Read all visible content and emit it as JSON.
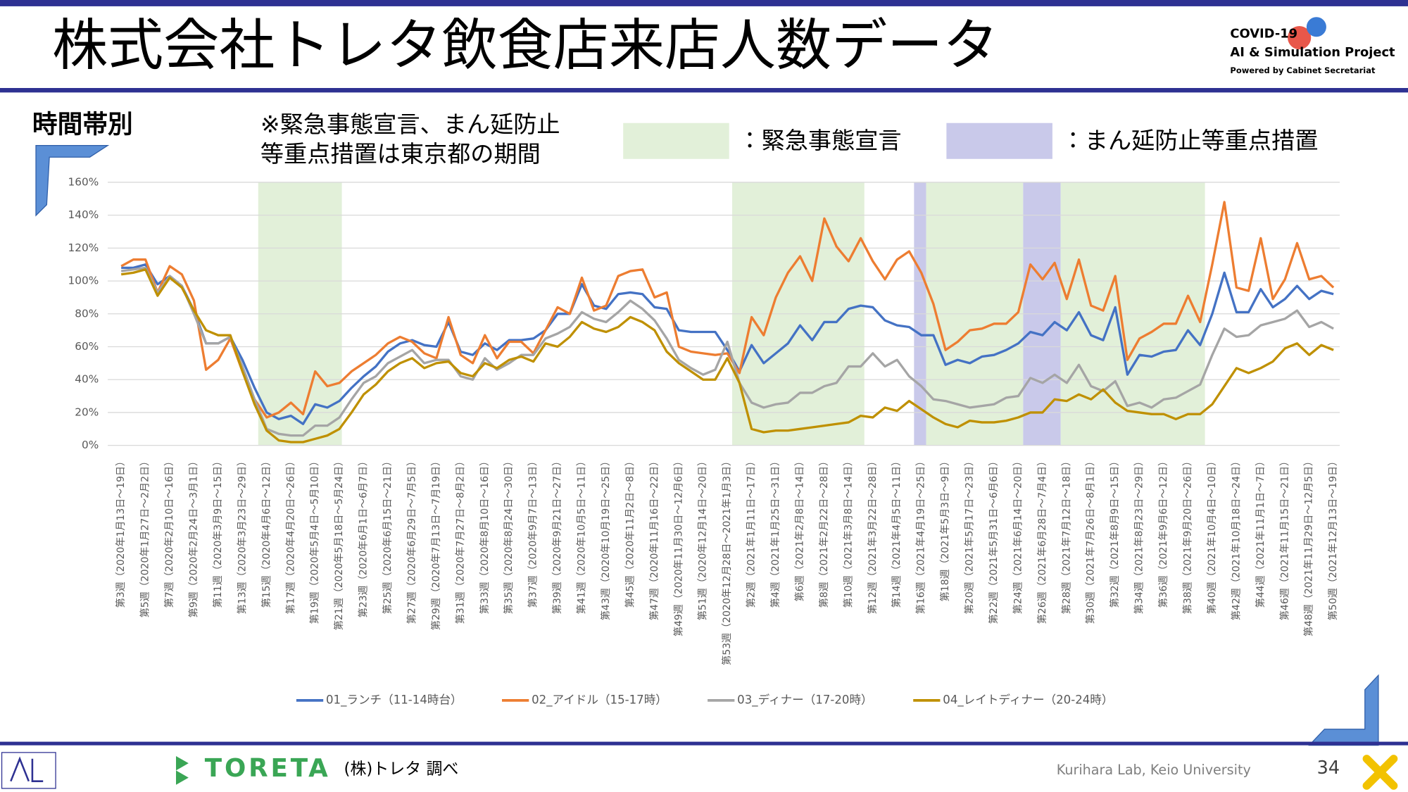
{
  "title": "株式会社トレタ飲食店来店人数データ",
  "logo": {
    "line1": "COVID-19",
    "line2": "AI & Simulation Project",
    "line3": "Powered by Cabinet Secretariat"
  },
  "subtitle": "時間帯別",
  "note": [
    "※緊急事態宣言、まん延防止",
    "等重点措置は東京都の期間"
  ],
  "band_legend": [
    {
      "label": "：緊急事態宣言",
      "color": "#e2f0d9"
    },
    {
      "label": "：まん延防止等重点措置",
      "color": "#c9c9ea"
    }
  ],
  "footer": {
    "brand": "TORETA",
    "source": "(株)トレタ 調べ",
    "lab": "Kurihara Lab, Keio University",
    "page": "34"
  },
  "chart_data": {
    "type": "line",
    "grid": true,
    "ylim": [
      0,
      160
    ],
    "yticks": [
      {
        "value": 0,
        "label": "0%"
      },
      {
        "value": 20,
        "label": "20%"
      },
      {
        "value": 40,
        "label": "40%"
      },
      {
        "value": 60,
        "label": "60%"
      },
      {
        "value": 80,
        "label": "80%"
      },
      {
        "value": 100,
        "label": "100%"
      },
      {
        "value": 120,
        "label": "120%"
      },
      {
        "value": 140,
        "label": "140%"
      },
      {
        "value": 160,
        "label": "160%"
      }
    ],
    "bands": [
      {
        "color": "#e2f0d9",
        "x": [
          11.3,
          18.2
        ]
      },
      {
        "color": "#e2f0d9",
        "x": [
          50.4,
          61.3
        ]
      },
      {
        "color": "#c9c9ea",
        "x": [
          65.4,
          66.4
        ]
      },
      {
        "color": "#e2f0d9",
        "x": [
          66.4,
          74.4
        ]
      },
      {
        "color": "#c9c9ea",
        "x": [
          74.4,
          77.5
        ]
      },
      {
        "color": "#e2f0d9",
        "x": [
          77.5,
          89.4
        ]
      }
    ],
    "categories": [
      "第3週（2020年1月13日～19日）",
      null,
      "第5週（2020年1月27日～2月2日）",
      null,
      "第7週（2020年2月10日～16日）",
      null,
      "第9週（2020年2月24日～3月1日）",
      null,
      "第11週（2020年3月9日～15日）",
      null,
      "第13週（2020年3月23日～29日）",
      null,
      "第15週（2020年4月6日～12日）",
      null,
      "第17週（2020年4月20日～26日）",
      null,
      "第19週（2020年5月4日～5月10日）",
      null,
      "第21週（2020年5月18日～5月24日）",
      null,
      "第23週（2020年6月1日～6月7日）",
      null,
      "第25週（2020年6月15日～21日）",
      null,
      "第27週（2020年6月29日～7月5日）",
      null,
      "第29週（2020年7月13日～7月19日）",
      null,
      "第31週（2020年7月27日～8月2日）",
      null,
      "第33週（2020年8月10日～16日）",
      null,
      "第35週（2020年8月24日～30日）",
      null,
      "第37週（2020年9月7日～13日）",
      null,
      "第39週（2020年9月21日～27日）",
      null,
      "第41週（2020年10月5日～11日）",
      null,
      "第43週（2020年10月19日～25日）",
      null,
      "第45週（2020年11月2日～8日）",
      null,
      "第47週（2020年11月16日～22日）",
      null,
      "第49週（2020年11月30日～12月6日）",
      null,
      "第51週（2020年12月14日～20日）",
      null,
      "第53週（2020年12月28日～2021年1月3日）",
      null,
      "第2週（2021年1月11日～17日）",
      null,
      "第4週（2021年1月25日～31日）",
      null,
      "第6週（2021年2月8日～14日）",
      null,
      "第8週（2021年2月22日～28日）",
      null,
      "第10週（2021年3月8日～14日）",
      null,
      "第12週（2021年3月22日～28日）",
      null,
      "第14週（2021年4月5日～11日）",
      null,
      "第16週（2021年4月19日～25日）",
      null,
      "第18週（2021年5月3日～9日）",
      null,
      "第20週（2021年5月17日～23日）",
      null,
      "第22週（2021年5月31日～6月6日）",
      null,
      "第24週（2021年6月14日～20日）",
      null,
      "第26週（2021年6月28日～7月4日）",
      null,
      "第28週（2021年7月12日～18日）",
      null,
      "第30週（2021年7月26日～8月1日）",
      null,
      "第32週（2021年8月9日～15日）",
      null,
      "第34週（2021年8月23日～29日）",
      null,
      "第36週（2021年9月6日～12日）",
      null,
      "第38週（2021年9月20日～26日）",
      null,
      "第40週（2021年10月4日～10日）",
      null,
      "第42週（2021年10月18日～24日）",
      null,
      "第44週（2021年11月1日～7日）",
      null,
      "第46週（2021年11月15日～21日）",
      null,
      "第48週（2021年11月29日～12月5日）",
      null,
      "第50週（2021年12月13日～19日）"
    ],
    "series": [
      {
        "name": "01_ランチ（11-14時台）",
        "color": "#4472c4",
        "values": [
          108,
          108,
          110,
          98,
          103,
          97,
          82,
          62,
          62,
          66,
          52,
          35,
          20,
          16,
          18,
          13,
          25,
          23,
          27,
          35,
          42,
          48,
          57,
          62,
          64,
          61,
          60,
          75,
          57,
          55,
          62,
          58,
          64,
          64,
          65,
          70,
          80,
          80,
          98,
          85,
          83,
          92,
          93,
          92,
          84,
          83,
          70,
          69,
          69,
          69,
          58,
          45,
          61,
          50,
          56,
          62,
          73,
          64,
          75,
          75,
          83,
          85,
          84,
          76,
          73,
          72,
          67,
          67,
          49,
          52,
          50,
          54,
          55,
          58,
          62,
          69,
          67,
          75,
          70,
          81,
          67,
          64,
          84,
          43,
          55,
          54,
          57,
          58,
          70,
          61,
          80,
          105,
          81,
          81,
          95,
          84,
          89,
          97,
          89,
          94,
          92
        ]
      },
      {
        "name": "02_アイドル（15-17時）",
        "color": "#ed7d31",
        "values": [
          109,
          113,
          113,
          93,
          109,
          104,
          88,
          46,
          52,
          65,
          45,
          28,
          17,
          20,
          26,
          19,
          45,
          36,
          38,
          45,
          50,
          55,
          62,
          66,
          63,
          56,
          53,
          78,
          55,
          50,
          67,
          53,
          63,
          63,
          56,
          70,
          84,
          80,
          102,
          82,
          85,
          103,
          106,
          107,
          90,
          93,
          60,
          57,
          56,
          55,
          56,
          44,
          78,
          67,
          90,
          105,
          115,
          100,
          138,
          121,
          112,
          126,
          112,
          101,
          113,
          118,
          105,
          86,
          58,
          63,
          70,
          71,
          74,
          74,
          81,
          110,
          101,
          111,
          89,
          113,
          85,
          82,
          103,
          52,
          65,
          69,
          74,
          74,
          91,
          75,
          110,
          148,
          96,
          94,
          126,
          89,
          101,
          123,
          101,
          103,
          96
        ]
      },
      {
        "name": "03_ディナー（17-20時）",
        "color": "#a5a5a5",
        "values": [
          106,
          107,
          108,
          93,
          103,
          97,
          80,
          62,
          62,
          66,
          48,
          28,
          10,
          7,
          6,
          6,
          12,
          12,
          17,
          28,
          38,
          42,
          50,
          54,
          58,
          50,
          52,
          52,
          42,
          40,
          53,
          46,
          50,
          55,
          55,
          65,
          68,
          72,
          81,
          77,
          75,
          81,
          88,
          83,
          76,
          65,
          52,
          47,
          43,
          46,
          63,
          38,
          26,
          23,
          25,
          26,
          32,
          32,
          36,
          38,
          48,
          48,
          56,
          48,
          52,
          42,
          36,
          28,
          27,
          25,
          23,
          24,
          25,
          29,
          30,
          41,
          38,
          43,
          38,
          49,
          36,
          33,
          39,
          24,
          26,
          23,
          28,
          29,
          33,
          37,
          55,
          71,
          66,
          67,
          73,
          75,
          77,
          82,
          72,
          75,
          71
        ]
      },
      {
        "name": "04_レイトディナー（20-24時）",
        "color": "#bf9000",
        "values": [
          104,
          105,
          107,
          91,
          102,
          96,
          82,
          70,
          67,
          67,
          45,
          25,
          9,
          3,
          2,
          2,
          4,
          6,
          10,
          20,
          31,
          37,
          45,
          50,
          53,
          47,
          50,
          51,
          44,
          42,
          50,
          47,
          52,
          54,
          51,
          62,
          60,
          66,
          75,
          71,
          69,
          72,
          78,
          75,
          70,
          57,
          50,
          45,
          40,
          40,
          53,
          38,
          10,
          8,
          9,
          9,
          10,
          11,
          12,
          13,
          14,
          18,
          17,
          23,
          21,
          27,
          22,
          17,
          13,
          11,
          15,
          14,
          14,
          15,
          17,
          20,
          20,
          28,
          27,
          31,
          28,
          34,
          26,
          21,
          20,
          19,
          19,
          16,
          19,
          19,
          25,
          36,
          47,
          44,
          47,
          51,
          59,
          62,
          55,
          61,
          58
        ]
      }
    ]
  }
}
